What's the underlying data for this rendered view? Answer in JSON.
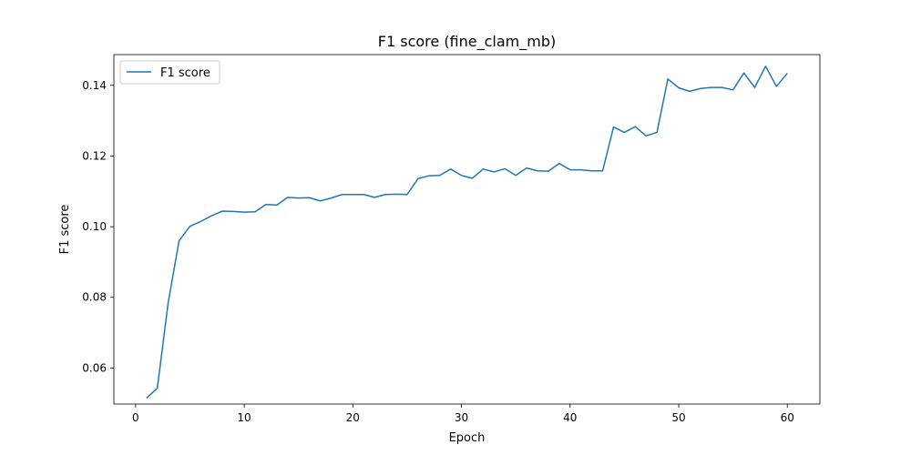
{
  "chart_data": {
    "type": "line",
    "title": "F1 score (fine_clam_mb)",
    "xlabel": "Epoch",
    "ylabel": "F1 score",
    "xlim": [
      -2,
      63
    ],
    "ylim": [
      0.0498,
      0.1487
    ],
    "xticks": [
      "0",
      "10",
      "20",
      "30",
      "40",
      "50",
      "60"
    ],
    "yticks": [
      "0.06",
      "0.08",
      "0.10",
      "0.12",
      "0.14"
    ],
    "grid": false,
    "legend": "top-left",
    "series": [
      {
        "name": "F1 score",
        "color": "#1f77b4",
        "x": [
          1,
          2,
          3,
          4,
          5,
          6,
          7,
          8,
          9,
          10,
          11,
          12,
          13,
          14,
          15,
          16,
          17,
          18,
          19,
          20,
          21,
          22,
          23,
          24,
          25,
          26,
          27,
          28,
          29,
          30,
          31,
          32,
          33,
          34,
          35,
          36,
          37,
          38,
          39,
          40,
          41,
          42,
          43,
          44,
          45,
          46,
          47,
          48,
          49,
          50,
          51,
          52,
          53,
          54,
          55,
          56,
          57,
          58,
          59,
          60
        ],
        "y": [
          0.0515,
          0.0543,
          0.0785,
          0.096,
          0.1001,
          0.1015,
          0.1031,
          0.1044,
          0.1043,
          0.1041,
          0.1042,
          0.1063,
          0.1061,
          0.1083,
          0.1081,
          0.1082,
          0.1073,
          0.1081,
          0.1091,
          0.1091,
          0.1091,
          0.1083,
          0.1091,
          0.1092,
          0.1091,
          0.1136,
          0.1144,
          0.1145,
          0.1163,
          0.1145,
          0.1137,
          0.1163,
          0.1155,
          0.1164,
          0.1145,
          0.1166,
          0.1158,
          0.1157,
          0.1179,
          0.1161,
          0.1161,
          0.1158,
          0.1158,
          0.1282,
          0.1267,
          0.1283,
          0.1257,
          0.1267,
          0.1418,
          0.1393,
          0.1383,
          0.1391,
          0.1394,
          0.1394,
          0.1387,
          0.1435,
          0.1394,
          0.1454,
          0.1397,
          0.1434
        ]
      }
    ]
  }
}
